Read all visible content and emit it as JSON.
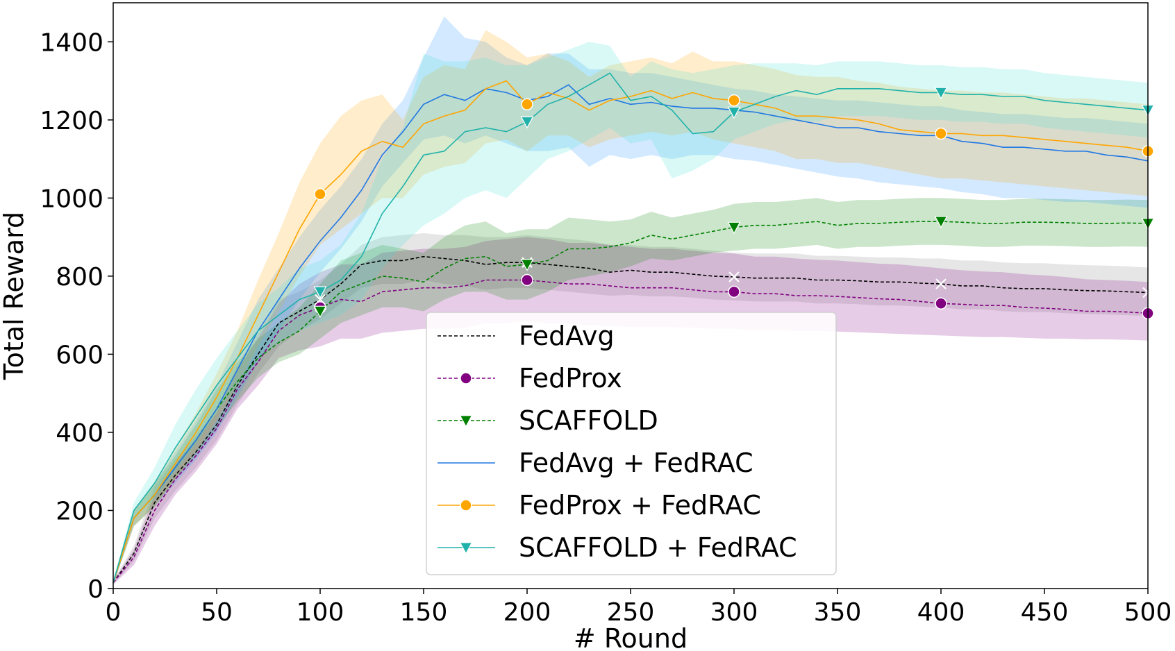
{
  "chart_data": {
    "type": "line",
    "title": "",
    "xlabel": "# Round",
    "ylabel": "Total Reward",
    "xlim": [
      0,
      500
    ],
    "ylim": [
      0,
      1500
    ],
    "xticks": [
      0,
      50,
      100,
      150,
      200,
      250,
      300,
      350,
      400,
      450,
      500
    ],
    "yticks": [
      0,
      200,
      400,
      600,
      800,
      1000,
      1200,
      1400
    ],
    "grid": false,
    "legend_position": "lower-center",
    "x": [
      0,
      10,
      20,
      30,
      40,
      50,
      60,
      70,
      80,
      90,
      100,
      110,
      120,
      130,
      140,
      150,
      160,
      170,
      180,
      190,
      200,
      210,
      220,
      230,
      240,
      250,
      260,
      270,
      280,
      290,
      300,
      310,
      320,
      330,
      340,
      350,
      360,
      370,
      380,
      390,
      400,
      410,
      420,
      430,
      440,
      450,
      460,
      470,
      480,
      490,
      500
    ],
    "series": [
      {
        "name": "FedAvg",
        "color": "#000000",
        "band_color": "#808080",
        "dashed": true,
        "marker": "x",
        "values": [
          15,
          90,
          220,
          290,
          350,
          420,
          520,
          600,
          680,
          710,
          740,
          780,
          830,
          840,
          840,
          850,
          845,
          840,
          830,
          835,
          835,
          830,
          825,
          820,
          810,
          815,
          810,
          810,
          805,
          800,
          798,
          795,
          795,
          795,
          790,
          790,
          788,
          785,
          785,
          782,
          780,
          775,
          775,
          770,
          768,
          768,
          765,
          763,
          762,
          760,
          758
        ],
        "lower": [
          10,
          70,
          180,
          250,
          310,
          380,
          470,
          550,
          620,
          660,
          690,
          730,
          770,
          780,
          780,
          790,
          780,
          775,
          765,
          770,
          770,
          765,
          760,
          755,
          750,
          752,
          748,
          748,
          745,
          740,
          738,
          735,
          735,
          735,
          730,
          730,
          728,
          725,
          725,
          722,
          720,
          715,
          715,
          710,
          708,
          708,
          705,
          703,
          702,
          700,
          698
        ],
        "upper": [
          20,
          110,
          260,
          330,
          390,
          460,
          570,
          650,
          740,
          760,
          790,
          830,
          880,
          900,
          905,
          910,
          905,
          905,
          900,
          900,
          905,
          900,
          895,
          890,
          880,
          880,
          875,
          875,
          870,
          865,
          860,
          858,
          858,
          858,
          852,
          852,
          850,
          848,
          848,
          845,
          845,
          840,
          840,
          835,
          833,
          833,
          830,
          828,
          827,
          825,
          822
        ]
      },
      {
        "name": "FedProx",
        "color": "#800080",
        "band_color": "#800080",
        "dashed": true,
        "marker": "circle",
        "values": [
          15,
          80,
          200,
          280,
          340,
          410,
          510,
          580,
          660,
          700,
          720,
          740,
          735,
          760,
          765,
          770,
          770,
          775,
          790,
          790,
          790,
          785,
          780,
          780,
          775,
          770,
          770,
          770,
          765,
          760,
          760,
          755,
          755,
          750,
          750,
          748,
          745,
          742,
          740,
          735,
          730,
          728,
          725,
          725,
          720,
          718,
          715,
          710,
          710,
          708,
          705
        ],
        "lower": [
          10,
          60,
          160,
          240,
          300,
          370,
          460,
          520,
          590,
          610,
          620,
          640,
          640,
          655,
          660,
          665,
          665,
          668,
          680,
          680,
          685,
          680,
          678,
          675,
          672,
          670,
          670,
          670,
          668,
          665,
          665,
          662,
          662,
          660,
          660,
          658,
          656,
          654,
          652,
          650,
          648,
          646,
          644,
          644,
          642,
          640,
          640,
          638,
          638,
          637,
          635
        ],
        "upper": [
          20,
          100,
          240,
          320,
          380,
          450,
          560,
          640,
          730,
          780,
          810,
          830,
          830,
          860,
          865,
          870,
          870,
          875,
          890,
          895,
          900,
          895,
          885,
          885,
          880,
          875,
          870,
          870,
          865,
          860,
          858,
          850,
          850,
          845,
          842,
          840,
          836,
          832,
          830,
          825,
          820,
          815,
          812,
          810,
          805,
          802,
          798,
          792,
          790,
          788,
          785
        ]
      },
      {
        "name": "SCAFFOLD",
        "color": "#008000",
        "band_color": "#008000",
        "dashed": true,
        "marker": "triangle-down",
        "values": [
          15,
          180,
          240,
          310,
          380,
          460,
          530,
          590,
          630,
          660,
          710,
          760,
          780,
          800,
          795,
          785,
          820,
          845,
          850,
          825,
          830,
          840,
          870,
          870,
          875,
          885,
          905,
          895,
          905,
          915,
          925,
          930,
          930,
          935,
          940,
          930,
          935,
          935,
          938,
          940,
          940,
          938,
          935,
          935,
          938,
          938,
          937,
          935,
          935,
          936,
          935
        ],
        "lower": [
          10,
          160,
          210,
          280,
          340,
          410,
          480,
          540,
          580,
          600,
          640,
          680,
          700,
          720,
          720,
          710,
          740,
          760,
          760,
          740,
          740,
          760,
          790,
          800,
          810,
          825,
          845,
          840,
          850,
          860,
          865,
          870,
          870,
          875,
          880,
          870,
          875,
          875,
          878,
          880,
          880,
          878,
          875,
          875,
          878,
          878,
          877,
          875,
          875,
          876,
          875
        ],
        "upper": [
          20,
          200,
          270,
          340,
          420,
          510,
          580,
          640,
          680,
          720,
          780,
          840,
          860,
          880,
          870,
          860,
          900,
          930,
          940,
          910,
          920,
          920,
          950,
          945,
          940,
          945,
          965,
          950,
          960,
          970,
          985,
          990,
          990,
          995,
          1000,
          990,
          995,
          995,
          998,
          1000,
          1000,
          998,
          995,
          995,
          998,
          998,
          997,
          995,
          995,
          996,
          995
        ]
      },
      {
        "name": "FedAvg + FedRAC",
        "color": "#1f77e4",
        "band_color": "#1e90ff",
        "dashed": false,
        "marker": "none",
        "values": [
          15,
          180,
          240,
          310,
          380,
          460,
          560,
          660,
          740,
          820,
          890,
          950,
          1020,
          1110,
          1170,
          1240,
          1265,
          1250,
          1280,
          1270,
          1250,
          1260,
          1290,
          1240,
          1255,
          1240,
          1245,
          1235,
          1230,
          1230,
          1225,
          1220,
          1210,
          1200,
          1190,
          1180,
          1180,
          1170,
          1165,
          1160,
          1160,
          1145,
          1140,
          1130,
          1130,
          1125,
          1120,
          1120,
          1110,
          1105,
          1095
        ],
        "lower": [
          10,
          160,
          210,
          270,
          330,
          400,
          490,
          580,
          660,
          740,
          810,
          870,
          940,
          1030,
          1090,
          1150,
          1160,
          1140,
          1160,
          1140,
          1120,
          1120,
          1130,
          1080,
          1110,
          1100,
          1110,
          1100,
          1110,
          1110,
          1100,
          1095,
          1085,
          1075,
          1065,
          1055,
          1050,
          1040,
          1035,
          1030,
          1025,
          1015,
          1010,
          1000,
          1000,
          995,
          990,
          990,
          985,
          980,
          975
        ],
        "upper": [
          20,
          200,
          270,
          350,
          430,
          520,
          630,
          740,
          820,
          900,
          970,
          1030,
          1100,
          1190,
          1250,
          1360,
          1465,
          1410,
          1400,
          1360,
          1340,
          1370,
          1370,
          1330,
          1330,
          1320,
          1320,
          1310,
          1300,
          1290,
          1280,
          1275,
          1265,
          1260,
          1255,
          1250,
          1250,
          1245,
          1240,
          1235,
          1235,
          1225,
          1220,
          1215,
          1215,
          1210,
          1205,
          1205,
          1200,
          1195,
          1190
        ]
      },
      {
        "name": "FedProx + FedRAC",
        "color": "#ffa500",
        "band_color": "#ffa500",
        "dashed": false,
        "marker": "circle",
        "values": [
          15,
          180,
          240,
          320,
          400,
          490,
          590,
          700,
          810,
          920,
          1010,
          1060,
          1120,
          1145,
          1130,
          1190,
          1210,
          1225,
          1280,
          1300,
          1240,
          1270,
          1255,
          1225,
          1250,
          1260,
          1275,
          1255,
          1270,
          1255,
          1250,
          1240,
          1230,
          1210,
          1210,
          1205,
          1200,
          1190,
          1175,
          1170,
          1165,
          1165,
          1160,
          1160,
          1155,
          1150,
          1145,
          1140,
          1135,
          1130,
          1120
        ],
        "lower": [
          10,
          160,
          210,
          280,
          350,
          430,
          520,
          620,
          710,
          800,
          880,
          920,
          960,
          1000,
          1000,
          1060,
          1080,
          1090,
          1140,
          1150,
          1120,
          1160,
          1160,
          1130,
          1150,
          1160,
          1170,
          1160,
          1170,
          1150,
          1140,
          1130,
          1120,
          1100,
          1100,
          1090,
          1090,
          1080,
          1070,
          1060,
          1050,
          1050,
          1045,
          1040,
          1035,
          1030,
          1025,
          1020,
          1015,
          1010,
          1005
        ],
        "upper": [
          20,
          200,
          270,
          360,
          450,
          550,
          660,
          790,
          910,
          1040,
          1140,
          1210,
          1250,
          1265,
          1200,
          1310,
          1340,
          1330,
          1430,
          1400,
          1360,
          1370,
          1350,
          1310,
          1340,
          1350,
          1360,
          1345,
          1375,
          1350,
          1350,
          1340,
          1330,
          1315,
          1310,
          1310,
          1300,
          1295,
          1285,
          1280,
          1275,
          1275,
          1270,
          1270,
          1265,
          1260,
          1255,
          1255,
          1250,
          1245,
          1240
        ]
      },
      {
        "name": "SCAFFOLD + FedRAC",
        "color": "#20b2aa",
        "band_color": "#40e0d0",
        "dashed": false,
        "marker": "triangle-down",
        "values": [
          15,
          200,
          270,
          360,
          440,
          520,
          590,
          660,
          700,
          740,
          760,
          790,
          850,
          960,
          1030,
          1110,
          1120,
          1170,
          1180,
          1170,
          1195,
          1240,
          1260,
          1290,
          1320,
          1250,
          1260,
          1225,
          1165,
          1170,
          1220,
          1240,
          1260,
          1275,
          1265,
          1280,
          1280,
          1280,
          1275,
          1270,
          1270,
          1265,
          1265,
          1260,
          1260,
          1250,
          1245,
          1240,
          1235,
          1230,
          1225
        ],
        "lower": [
          10,
          180,
          230,
          300,
          370,
          450,
          520,
          590,
          630,
          660,
          680,
          700,
          740,
          820,
          880,
          930,
          960,
          1000,
          1020,
          1000,
          1050,
          1100,
          1120,
          1150,
          1180,
          1140,
          1150,
          1050,
          1070,
          1100,
          1150,
          1170,
          1190,
          1200,
          1195,
          1210,
          1210,
          1210,
          1205,
          1200,
          1200,
          1195,
          1195,
          1190,
          1190,
          1180,
          1175,
          1170,
          1165,
          1160,
          1155
        ],
        "upper": [
          20,
          220,
          310,
          420,
          510,
          590,
          660,
          730,
          770,
          820,
          840,
          880,
          960,
          1100,
          1180,
          1370,
          1350,
          1350,
          1360,
          1340,
          1340,
          1360,
          1380,
          1400,
          1390,
          1310,
          1350,
          1330,
          1320,
          1330,
          1340,
          1345,
          1345,
          1345,
          1340,
          1350,
          1350,
          1350,
          1345,
          1340,
          1340,
          1335,
          1335,
          1330,
          1330,
          1320,
          1315,
          1310,
          1305,
          1300,
          1295
        ]
      }
    ]
  }
}
